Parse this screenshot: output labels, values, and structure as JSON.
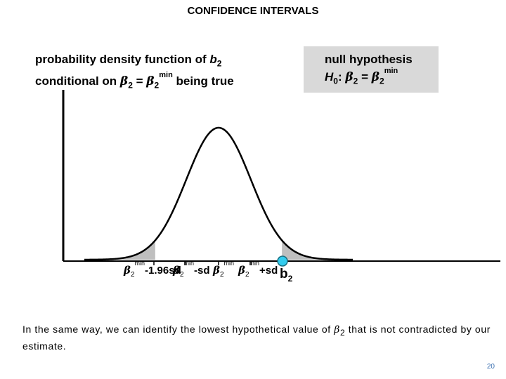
{
  "slide": {
    "title": "CONFIDENCE INTERVALS",
    "page_number": "20"
  },
  "pdf_label": {
    "line1_prefix": "probability density function of ",
    "line1_var": "b",
    "line1_sub": "2",
    "line2_prefix": "conditional on ",
    "beta": "β",
    "sub2": "2",
    "equals": " = ",
    "sup_min": "min",
    "line2_suffix": " being true"
  },
  "null_hypothesis": {
    "heading": "null hypothesis",
    "h": "H",
    "h_sub": "0",
    "colon": ": ",
    "beta": "β",
    "sub2": "2",
    "equals": " = ",
    "sup_min": "min"
  },
  "axis_labels": {
    "beta": "β",
    "sub2": "2",
    "sup_min": "min",
    "minus_196sd": "-1.96sd",
    "minus_sd": "-sd",
    "plus_sd": "+sd",
    "b2_var": "b",
    "b2_sub": "2"
  },
  "caption": {
    "before": "In the same way, we can identify the lowest hypothetical value of ",
    "beta": "β",
    "sub2": "2",
    "after": " that is not contradicted by our estimate."
  },
  "colors": {
    "curve": "#000000",
    "shaded_tail": "#bfbfbf",
    "marker_fill": "#33ccee",
    "null_box": "#d9d9d9",
    "page_number": "#3a6fb0"
  }
}
